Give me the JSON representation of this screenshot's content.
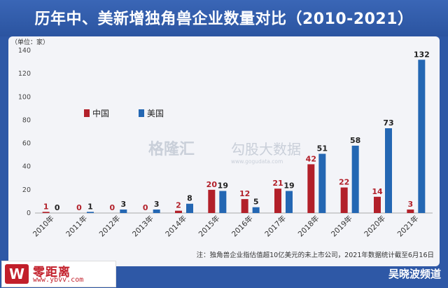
{
  "title": "历年中、美新增独角兽企业数量对比（2010-2021）",
  "unit_label": "（单位：家）",
  "watermark": {
    "brand": "格隆汇",
    "sub": "勾股大数据",
    "url": "www.gogudata.com"
  },
  "note": "注：独角兽企业指估值超10亿美元的未上市公司，2021年数据统计截至6月16日",
  "logo": {
    "mark": "W",
    "name": "零距离",
    "url": "www.ybvv.com"
  },
  "channel": "吴晓波频道",
  "colors": {
    "china": "#b2202a",
    "usa": "#2467b3"
  },
  "chart_data": {
    "type": "bar",
    "categories": [
      "2010年",
      "2011年",
      "2012年",
      "2013年",
      "2014年",
      "2015年",
      "2016年",
      "2017年",
      "2018年",
      "2019年",
      "2020年",
      "2021年"
    ],
    "series": [
      {
        "name": "中国",
        "values": [
          1,
          0,
          0,
          0,
          2,
          20,
          12,
          21,
          42,
          22,
          14,
          3
        ]
      },
      {
        "name": "美国",
        "values": [
          0,
          1,
          3,
          3,
          8,
          19,
          5,
          19,
          51,
          58,
          73,
          132
        ]
      }
    ],
    "yticks": [
      0,
      20,
      40,
      60,
      80,
      100,
      120,
      140
    ],
    "ylim": [
      0,
      140
    ],
    "legend": "top-left",
    "grid": false
  }
}
